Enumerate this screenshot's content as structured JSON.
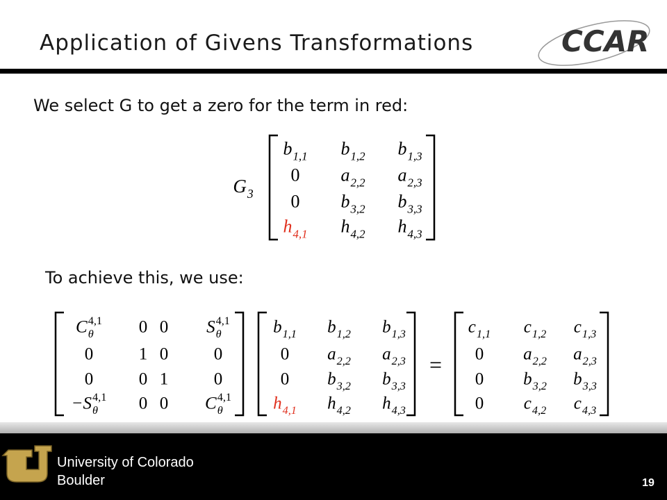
{
  "header": {
    "title": "Application of Givens Transformations",
    "logo": "CCAR"
  },
  "body": {
    "line1": "We select G to get a zero for the term in red:",
    "line2": "To achieve this, we use:"
  },
  "equation1": {
    "operator": {
      "base": "G",
      "sub": "3"
    },
    "matrix": [
      [
        {
          "base": "b",
          "sub": "1,1"
        },
        {
          "base": "b",
          "sub": "1,2"
        },
        {
          "base": "b",
          "sub": "1,3"
        }
      ],
      [
        {
          "base": "0"
        },
        {
          "base": "a",
          "sub": "2,2"
        },
        {
          "base": "a",
          "sub": "2,3"
        }
      ],
      [
        {
          "base": "0"
        },
        {
          "base": "b",
          "sub": "3,2"
        },
        {
          "base": "b",
          "sub": "3,3"
        }
      ],
      [
        {
          "base": "h",
          "sub": "4,1",
          "color": "#e0301e"
        },
        {
          "base": "h",
          "sub": "4,2"
        },
        {
          "base": "h",
          "sub": "4,3"
        }
      ]
    ]
  },
  "equation2": {
    "equals": "=",
    "matrices": [
      [
        [
          {
            "base": "C",
            "sub": "θ",
            "sup": "4,1"
          },
          {
            "base": "0"
          },
          {
            "base": "0"
          },
          {
            "base": "S",
            "sub": "θ",
            "sup": "4,1"
          }
        ],
        [
          {
            "base": "0"
          },
          {
            "base": "1"
          },
          {
            "base": "0"
          },
          {
            "base": "0"
          }
        ],
        [
          {
            "base": "0"
          },
          {
            "base": "0"
          },
          {
            "base": "1"
          },
          {
            "base": "0"
          }
        ],
        [
          {
            "base": "−S",
            "sub": "θ",
            "sup": "4,1"
          },
          {
            "base": "0"
          },
          {
            "base": "0"
          },
          {
            "base": "C",
            "sub": "θ",
            "sup": "4,1"
          }
        ]
      ],
      [
        [
          {
            "base": "b",
            "sub": "1,1"
          },
          {
            "base": "b",
            "sub": "1,2"
          },
          {
            "base": "b",
            "sub": "1,3"
          }
        ],
        [
          {
            "base": "0"
          },
          {
            "base": "a",
            "sub": "2,2"
          },
          {
            "base": "a",
            "sub": "2,3"
          }
        ],
        [
          {
            "base": "0"
          },
          {
            "base": "b",
            "sub": "3,2"
          },
          {
            "base": "b",
            "sub": "3,3"
          }
        ],
        [
          {
            "base": "h",
            "sub": "4,1",
            "color": "#e0301e"
          },
          {
            "base": "h",
            "sub": "4,2"
          },
          {
            "base": "h",
            "sub": "4,3"
          }
        ]
      ],
      [
        [
          {
            "base": "c",
            "sub": "1,1"
          },
          {
            "base": "c",
            "sub": "1,2"
          },
          {
            "base": "c",
            "sub": "1,3"
          }
        ],
        [
          {
            "base": "0"
          },
          {
            "base": "a",
            "sub": "2,2"
          },
          {
            "base": "a",
            "sub": "2,3"
          }
        ],
        [
          {
            "base": "0"
          },
          {
            "base": "b",
            "sub": "3,2"
          },
          {
            "base": "b",
            "sub": "3,3"
          }
        ],
        [
          {
            "base": "0"
          },
          {
            "base": "c",
            "sub": "4,2"
          },
          {
            "base": "c",
            "sub": "4,3"
          }
        ]
      ]
    ]
  },
  "footer": {
    "university": [
      "University of Colorado",
      "Boulder"
    ],
    "page": "19"
  }
}
